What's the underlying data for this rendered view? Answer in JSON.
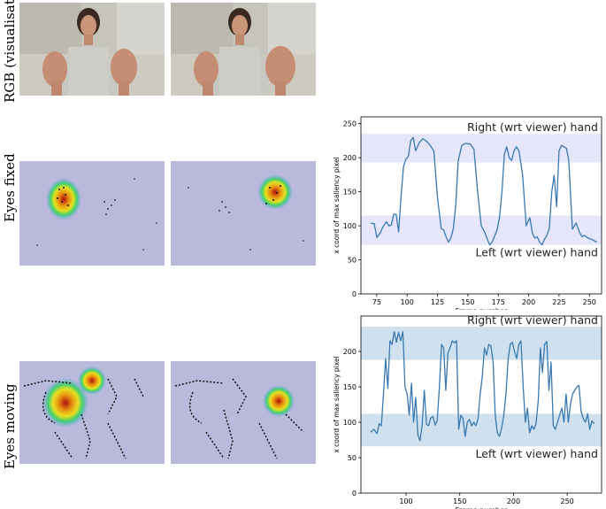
{
  "row_labels": {
    "rgb": "RGB (visualisation)",
    "fixed": "Eyes fixed",
    "moving": "Eyes moving"
  },
  "colors": {
    "line": "#3a78b0",
    "band_fixed": "#e6e6fb",
    "band_moving": "#cfe1ef",
    "map_background": "#b9b9dc",
    "event_dots": "#111111"
  },
  "chart_data": [
    {
      "type": "line",
      "id": "eyes-fixed",
      "xlabel": "Frame number",
      "ylabel": "x coord of max saliency pixel",
      "xlim": [
        62,
        260
      ],
      "ylim": [
        0,
        260
      ],
      "xticks": [
        75,
        100,
        125,
        150,
        175,
        200,
        225,
        250
      ],
      "yticks": [
        0,
        50,
        100,
        150,
        200,
        250
      ],
      "bands": [
        {
          "label": "Right (wrt viewer) hand",
          "range": [
            193,
            235
          ]
        },
        {
          "label": "Left (wrt viewer) hand",
          "range": [
            72,
            115
          ]
        }
      ],
      "series": [
        {
          "x": [
            70,
            73,
            75,
            78,
            80,
            83,
            85,
            87,
            89,
            91,
            93,
            95,
            97,
            99,
            101,
            103,
            105,
            107,
            110,
            113,
            116,
            119,
            122,
            125,
            128,
            130,
            132,
            134,
            136,
            138,
            140,
            142,
            145,
            148,
            152,
            155,
            158,
            161,
            164,
            166,
            168,
            170,
            172,
            174,
            176,
            178,
            180,
            182,
            184,
            186,
            188,
            190,
            192,
            195,
            198,
            201,
            203,
            205,
            207,
            209,
            211,
            213,
            215,
            217,
            219,
            221,
            223,
            225,
            227,
            229,
            231,
            233,
            236,
            239,
            242,
            244,
            246,
            248,
            250,
            252,
            254,
            256
          ],
          "y": [
            104,
            103,
            83,
            90,
            98,
            106,
            100,
            101,
            117,
            117,
            91,
            143,
            187,
            198,
            202,
            225,
            230,
            210,
            222,
            228,
            224,
            218,
            210,
            142,
            96,
            94,
            84,
            76,
            82,
            96,
            131,
            195,
            218,
            221,
            220,
            212,
            150,
            100,
            90,
            80,
            72,
            76,
            85,
            94,
            112,
            150,
            205,
            216,
            200,
            196,
            210,
            216,
            210,
            175,
            100,
            112,
            90,
            82,
            84,
            76,
            72,
            80,
            86,
            96,
            150,
            174,
            128,
            210,
            218,
            216,
            214,
            196,
            95,
            104,
            90,
            84,
            86,
            83,
            81,
            80,
            78,
            76
          ]
        }
      ]
    },
    {
      "type": "line",
      "id": "eyes-moving",
      "xlabel": "Frame number",
      "ylabel": "x coord of max saliency pixel",
      "xlim": [
        58,
        282
      ],
      "ylim": [
        0,
        250
      ],
      "xticks": [
        100,
        150,
        200,
        250
      ],
      "yticks": [
        0,
        50,
        100,
        150,
        200
      ],
      "bands": [
        {
          "label": "Right (wrt viewer) hand",
          "range": [
            188,
            235
          ]
        },
        {
          "label": "Left (wrt viewer) hand",
          "range": [
            66,
            112
          ]
        }
      ],
      "series": [
        {
          "x": [
            67,
            70,
            73,
            75,
            77,
            79,
            81,
            83,
            85,
            87,
            89,
            91,
            93,
            95,
            97,
            99,
            101,
            103,
            105,
            107,
            109,
            111,
            113,
            115,
            117,
            119,
            121,
            123,
            125,
            127,
            129,
            131,
            133,
            135,
            137,
            139,
            141,
            143,
            145,
            147,
            149,
            151,
            153,
            155,
            157,
            159,
            161,
            163,
            165,
            167,
            169,
            171,
            173,
            175,
            177,
            179,
            181,
            183,
            185,
            187,
            189,
            191,
            193,
            195,
            197,
            199,
            201,
            203,
            205,
            207,
            209,
            211,
            213,
            215,
            217,
            219,
            221,
            223,
            225,
            227,
            229,
            231,
            233,
            235,
            237,
            239,
            241,
            243,
            245,
            247,
            249,
            251,
            253,
            255,
            257,
            259,
            261,
            263,
            265,
            267,
            269,
            271,
            273,
            275
          ],
          "y": [
            86,
            90,
            84,
            98,
            95,
            140,
            190,
            148,
            215,
            210,
            228,
            213,
            227,
            215,
            228,
            150,
            140,
            110,
            155,
            100,
            135,
            82,
            74,
            96,
            145,
            97,
            95,
            106,
            108,
            96,
            102,
            148,
            210,
            205,
            145,
            198,
            205,
            215,
            212,
            215,
            90,
            110,
            105,
            80,
            100,
            104,
            95,
            100,
            95,
            105,
            140,
            165,
            205,
            195,
            210,
            208,
            185,
            110,
            85,
            80,
            92,
            110,
            140,
            190,
            210,
            213,
            200,
            190,
            210,
            215,
            150,
            100,
            120,
            85,
            95,
            90,
            98,
            130,
            205,
            170,
            210,
            214,
            145,
            185,
            95,
            90,
            100,
            110,
            120,
            100,
            140,
            100,
            125,
            140,
            145,
            150,
            152,
            115,
            105,
            100,
            112,
            90,
            102,
            98
          ]
        }
      ]
    }
  ]
}
